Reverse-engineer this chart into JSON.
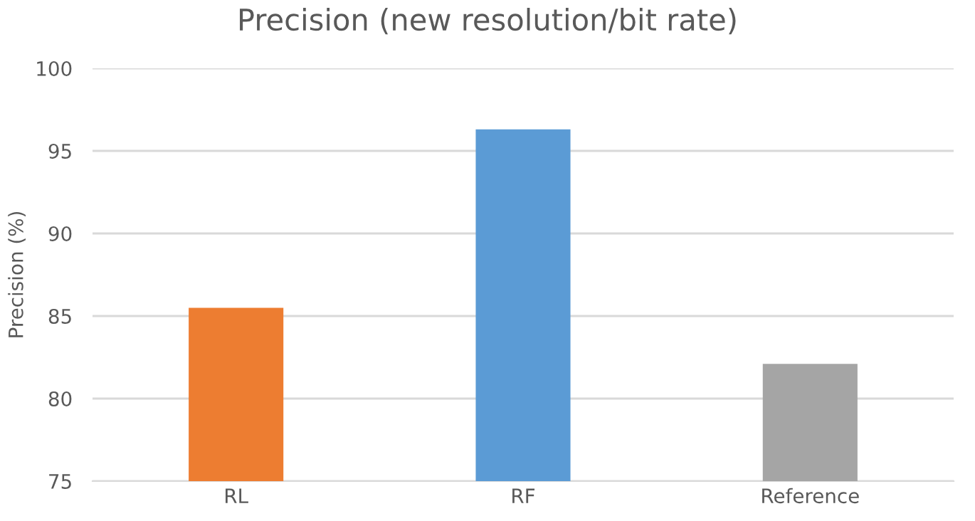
{
  "chart_data": {
    "type": "bar",
    "title": "Precision (new resolution/bit rate)",
    "ylabel": "Precision (%)",
    "categories": [
      "RL",
      "RF",
      "Reference"
    ],
    "values": [
      85.5,
      96.3,
      82.1
    ],
    "colors": [
      "#ed7d31",
      "#5b9bd5",
      "#a5a5a5"
    ],
    "ylim": [
      75,
      100
    ],
    "yticks": [
      75,
      80,
      85,
      90,
      95,
      100
    ],
    "grid": "y"
  }
}
